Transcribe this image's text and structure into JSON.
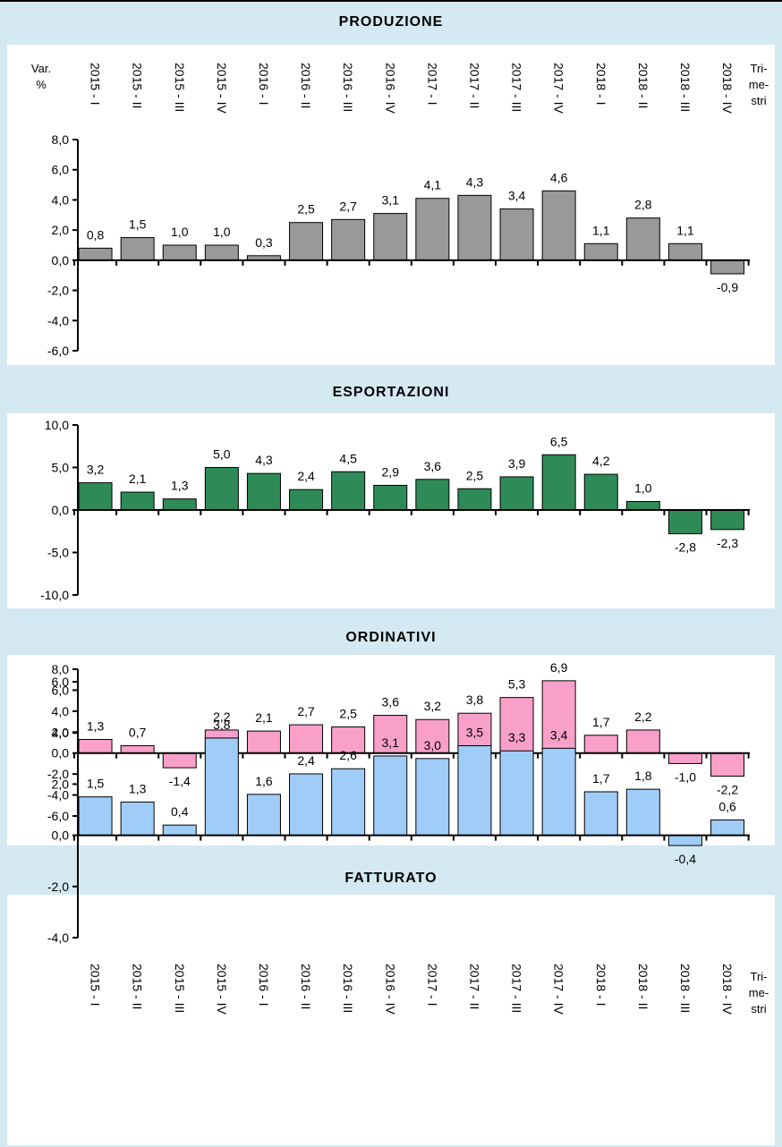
{
  "chart_data": [
    {
      "type": "bar",
      "title": "PRODUZIONE",
      "categories": [
        "2015 - I",
        "2015 - II",
        "2015 - III",
        "2015 - IV",
        "2016 - I",
        "2016 - II",
        "2016 - III",
        "2016 - IV",
        "2017 - I",
        "2017 - II",
        "2017 - III",
        "2017 - IV",
        "2018 - I",
        "2018 - II",
        "2018 - III",
        "2018 - IV"
      ],
      "values": [
        0.8,
        1.5,
        1.0,
        1.0,
        0.3,
        2.5,
        2.7,
        3.1,
        4.1,
        4.3,
        3.4,
        4.6,
        1.1,
        2.8,
        1.1,
        -0.9
      ],
      "value_labels": [
        "0,8",
        "1,5",
        "1,0",
        "1,0",
        "0,3",
        "2,5",
        "2,7",
        "3,1",
        "4,1",
        "4,3",
        "3,4",
        "4,6",
        "1,1",
        "2,8",
        "1,1",
        "-0,9"
      ],
      "ylim": [
        -6,
        8
      ],
      "yticks": [
        8,
        6,
        4,
        2,
        0,
        -2,
        -4,
        -6
      ],
      "ytick_labels": [
        "8,0",
        "6,0",
        "4,0",
        "2,0",
        "0,0",
        "-2,0",
        "-4,0",
        "-6,0"
      ],
      "ylabel": "Var. %",
      "xlabel": "Tri-me-stri",
      "ylabel_lines": [
        "Var.",
        "%"
      ],
      "xlabel_lines": [
        "Tri-",
        "me-",
        "stri"
      ],
      "bar_color": "#999999",
      "category_labels_position": "top"
    },
    {
      "type": "bar",
      "title": "ESPORTAZIONI",
      "categories": [
        "2015 - I",
        "2015 - II",
        "2015 - III",
        "2015 - IV",
        "2016 - I",
        "2016 - II",
        "2016 - III",
        "2016 - IV",
        "2017 - I",
        "2017 - II",
        "2017 - III",
        "2017 - IV",
        "2018 - I",
        "2018 - II",
        "2018 - III",
        "2018 - IV"
      ],
      "values": [
        3.2,
        2.1,
        1.3,
        5.0,
        4.3,
        2.4,
        4.5,
        2.9,
        3.6,
        2.5,
        3.9,
        6.5,
        4.2,
        1.0,
        -2.8,
        -2.3
      ],
      "value_labels": [
        "3,2",
        "2,1",
        "1,3",
        "5,0",
        "4,3",
        "2,4",
        "4,5",
        "2,9",
        "3,6",
        "2,5",
        "3,9",
        "6,5",
        "4,2",
        "1,0",
        "-2,8",
        "-2,3"
      ],
      "ylim": [
        -10,
        10
      ],
      "yticks": [
        10,
        5,
        0,
        -5,
        -10
      ],
      "ytick_labels": [
        "10,0",
        "5,0",
        "0,0",
        "-5,0",
        "-10,0"
      ],
      "bar_color": "#2e8b57"
    },
    {
      "type": "bar",
      "title": "ORDINATIVI",
      "categories": [
        "2015 - I",
        "2015 - II",
        "2015 - III",
        "2015 - IV",
        "2016 - I",
        "2016 - II",
        "2016 - III",
        "2016 - IV",
        "2017 - I",
        "2017 - II",
        "2017 - III",
        "2017 - IV",
        "2018 - I",
        "2018 - II",
        "2018 - III",
        "2018 - IV"
      ],
      "values": [
        1.3,
        0.7,
        -1.4,
        2.2,
        2.1,
        2.7,
        2.5,
        3.6,
        3.2,
        3.8,
        5.3,
        6.9,
        1.7,
        2.2,
        -1.0,
        -2.2
      ],
      "value_labels": [
        "1,3",
        "0,7",
        "-1,4",
        "2,2",
        "2,1",
        "2,7",
        "2,5",
        "3,6",
        "3,2",
        "3,8",
        "5,3",
        "6,9",
        "1,7",
        "2,2",
        "-1,0",
        "-2,2"
      ],
      "ylim": [
        -6,
        8
      ],
      "yticks": [
        8,
        6,
        4,
        2,
        0,
        -2,
        -4,
        -6
      ],
      "ytick_labels": [
        "8,0",
        "6,0",
        "4,0",
        "2,0",
        "0,0",
        "-2,0",
        "-4,0",
        "-6,0"
      ],
      "bar_color": "#f9a0c8"
    },
    {
      "type": "bar",
      "title": "FATTURATO",
      "categories": [
        "2015 - I",
        "2015 - II",
        "2015 - III",
        "2015 - IV",
        "2016 - I",
        "2016 - II",
        "2016 - III",
        "2016 - IV",
        "2017 - I",
        "2017 - II",
        "2017 - III",
        "2017 - IV",
        "2018 - I",
        "2018 - II",
        "2018 - III",
        "2018 - IV"
      ],
      "values": [
        1.5,
        1.3,
        0.4,
        3.8,
        1.6,
        2.4,
        2.6,
        3.1,
        3.0,
        3.5,
        3.3,
        3.4,
        1.7,
        1.8,
        -0.4,
        0.6
      ],
      "value_labels": [
        "1,5",
        "1,3",
        "0,4",
        "3,8",
        "1,6",
        "2,4",
        "2,6",
        "3,1",
        "3,0",
        "3,5",
        "3,3",
        "3,4",
        "1,7",
        "1,8",
        "-0,4",
        "0,6"
      ],
      "ylim": [
        -4,
        6
      ],
      "yticks": [
        6,
        4,
        2,
        0,
        -2,
        -4
      ],
      "ytick_labels": [
        "6,0",
        "4,0",
        "2,0",
        "0,0",
        "-2,0",
        "-4,0"
      ],
      "xlabel": "Tri-me-stri",
      "xlabel_lines": [
        "Tri-",
        "me-",
        "stri"
      ],
      "bar_color": "#a0cdf8",
      "category_labels_position": "bottom"
    }
  ]
}
